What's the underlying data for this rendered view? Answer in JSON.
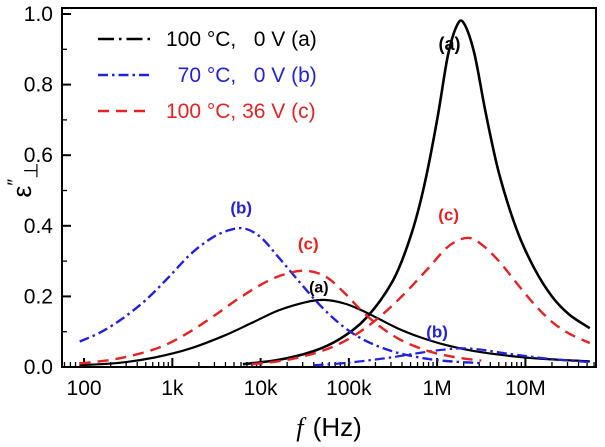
{
  "figure": {
    "background": "#ffffff"
  },
  "chart_data": {
    "type": "line",
    "title": "",
    "x_axis": {
      "label_italic": "f",
      "label_units": " (Hz)",
      "scale": "log",
      "range_log10": [
        1.75,
        7.8
      ],
      "ticks": [
        {
          "log10": 2,
          "label": "100"
        },
        {
          "log10": 3,
          "label": "1k"
        },
        {
          "log10": 4,
          "label": "10k"
        },
        {
          "log10": 5,
          "label": "100k"
        },
        {
          "log10": 6,
          "label": "1M"
        },
        {
          "log10": 7,
          "label": "10M"
        }
      ]
    },
    "y_axis": {
      "label_base": "ε",
      "label_sup": "″",
      "label_sub": "⊥",
      "range": [
        0,
        1.017
      ],
      "ticks": [
        {
          "value": 0.0,
          "label": "0.0"
        },
        {
          "value": 0.2,
          "label": "0.2"
        },
        {
          "value": 0.4,
          "label": "0.4"
        },
        {
          "value": 0.6,
          "label": "0.6"
        },
        {
          "value": 0.8,
          "label": "0.8"
        },
        {
          "value": 1.0,
          "label": "1.0"
        }
      ]
    },
    "colors": {
      "black": "#000000",
      "blue": "#2222dd",
      "red": "#e62222"
    },
    "legend": [
      {
        "label": "100 °C,   0 V (a)",
        "color": "#000000",
        "dash": "16 5 2.5 5"
      },
      {
        "label": "  70 °C,   0 V (b)",
        "color": "#2222dd",
        "dash": "10 4 2.5 4"
      },
      {
        "label": "100 °C, 36 V (c)",
        "color": "#e62222",
        "dash": "11 7"
      }
    ],
    "series": [
      {
        "id": "a-high-frequency-peak",
        "name": "100 °C, 0 V (a) high-f relaxation",
        "color": "#000000",
        "dash": null,
        "width": 2.6,
        "points": [
          [
            3.8,
            0.008
          ],
          [
            4.2,
            0.02
          ],
          [
            4.6,
            0.045
          ],
          [
            4.9,
            0.08
          ],
          [
            5.2,
            0.14
          ],
          [
            5.5,
            0.245
          ],
          [
            5.7,
            0.37
          ],
          [
            5.85,
            0.51
          ],
          [
            6.0,
            0.7
          ],
          [
            6.12,
            0.88
          ],
          [
            6.22,
            0.965
          ],
          [
            6.3,
            0.975
          ],
          [
            6.42,
            0.89
          ],
          [
            6.55,
            0.72
          ],
          [
            6.7,
            0.55
          ],
          [
            6.9,
            0.39
          ],
          [
            7.1,
            0.28
          ],
          [
            7.3,
            0.2
          ],
          [
            7.5,
            0.148
          ],
          [
            7.73,
            0.11
          ]
        ]
      },
      {
        "id": "a-low-frequency-peak",
        "name": "100 °C, 0 V (a) low-f relaxation",
        "color": "#000000",
        "dash": null,
        "width": 2.2,
        "points": [
          [
            1.95,
            0.005
          ],
          [
            2.4,
            0.012
          ],
          [
            2.8,
            0.027
          ],
          [
            3.2,
            0.052
          ],
          [
            3.6,
            0.09
          ],
          [
            3.9,
            0.125
          ],
          [
            4.2,
            0.16
          ],
          [
            4.5,
            0.183
          ],
          [
            4.72,
            0.19
          ],
          [
            4.95,
            0.18
          ],
          [
            5.15,
            0.16
          ],
          [
            5.35,
            0.135
          ],
          [
            5.55,
            0.11
          ],
          [
            5.8,
            0.085
          ],
          [
            6.1,
            0.062
          ],
          [
            6.4,
            0.046
          ],
          [
            6.8,
            0.032
          ],
          [
            7.2,
            0.023
          ],
          [
            7.73,
            0.016
          ]
        ]
      },
      {
        "id": "b-low-frequency-peak",
        "name": "70 °C, 0 V (b) low-f relaxation",
        "color": "#2222dd",
        "dash": "10 4 2.5 4",
        "width": 2.4,
        "points": [
          [
            1.95,
            0.072
          ],
          [
            2.2,
            0.1
          ],
          [
            2.45,
            0.14
          ],
          [
            2.7,
            0.19
          ],
          [
            2.95,
            0.252
          ],
          [
            3.2,
            0.318
          ],
          [
            3.45,
            0.366
          ],
          [
            3.65,
            0.388
          ],
          [
            3.82,
            0.392
          ],
          [
            4.0,
            0.368
          ],
          [
            4.2,
            0.312
          ],
          [
            4.45,
            0.238
          ],
          [
            4.7,
            0.168
          ],
          [
            4.95,
            0.112
          ],
          [
            5.2,
            0.073
          ],
          [
            5.5,
            0.044
          ],
          [
            5.8,
            0.027
          ],
          [
            6.1,
            0.017
          ],
          [
            6.5,
            0.011
          ]
        ]
      },
      {
        "id": "b-high-frequency-peak",
        "name": "70 °C, 0 V (b) high-f relaxation",
        "color": "#2222dd",
        "dash": "10 4 2.5 4",
        "width": 2.2,
        "points": [
          [
            4.6,
            0.005
          ],
          [
            4.9,
            0.01
          ],
          [
            5.2,
            0.018
          ],
          [
            5.5,
            0.028
          ],
          [
            5.8,
            0.04
          ],
          [
            6.1,
            0.05
          ],
          [
            6.3,
            0.053
          ],
          [
            6.5,
            0.049
          ],
          [
            6.8,
            0.038
          ],
          [
            7.1,
            0.028
          ],
          [
            7.4,
            0.02
          ],
          [
            7.73,
            0.014
          ]
        ]
      },
      {
        "id": "c-low-frequency-peak",
        "name": "100 °C, 36 V (c) low-f relaxation",
        "color": "#e62222",
        "dash": "11 7",
        "width": 2.4,
        "points": [
          [
            1.95,
            0.01
          ],
          [
            2.3,
            0.02
          ],
          [
            2.6,
            0.036
          ],
          [
            2.9,
            0.06
          ],
          [
            3.2,
            0.1
          ],
          [
            3.5,
            0.15
          ],
          [
            3.8,
            0.202
          ],
          [
            4.1,
            0.246
          ],
          [
            4.35,
            0.268
          ],
          [
            4.55,
            0.272
          ],
          [
            4.75,
            0.254
          ],
          [
            4.95,
            0.21
          ],
          [
            5.15,
            0.158
          ],
          [
            5.35,
            0.115
          ],
          [
            5.6,
            0.075
          ],
          [
            5.9,
            0.045
          ],
          [
            6.2,
            0.028
          ],
          [
            6.5,
            0.018
          ]
        ]
      },
      {
        "id": "c-high-frequency-peak",
        "name": "100 °C, 36 V (c) high-f relaxation",
        "color": "#e62222",
        "dash": "11 7",
        "width": 2.4,
        "points": [
          [
            3.9,
            0.008
          ],
          [
            4.3,
            0.02
          ],
          [
            4.7,
            0.046
          ],
          [
            5.0,
            0.08
          ],
          [
            5.3,
            0.132
          ],
          [
            5.6,
            0.2
          ],
          [
            5.9,
            0.28
          ],
          [
            6.1,
            0.336
          ],
          [
            6.25,
            0.36
          ],
          [
            6.38,
            0.365
          ],
          [
            6.52,
            0.344
          ],
          [
            6.7,
            0.3
          ],
          [
            6.9,
            0.238
          ],
          [
            7.1,
            0.178
          ],
          [
            7.3,
            0.128
          ],
          [
            7.5,
            0.094
          ],
          [
            7.73,
            0.068
          ]
        ]
      }
    ],
    "annotations": [
      {
        "text": "(a)",
        "x_log10": 6.14,
        "y": 0.915,
        "color": "#000000",
        "font_size": 18
      },
      {
        "text": "(a)",
        "x_log10": 4.66,
        "y": 0.228,
        "color": "#000000",
        "font_size": 16
      },
      {
        "text": "(b)",
        "x_log10": 3.78,
        "y": 0.452,
        "color": "#2222dd",
        "font_size": 17
      },
      {
        "text": "(b)",
        "x_log10": 6.0,
        "y": 0.1,
        "color": "#2222dd",
        "font_size": 17
      },
      {
        "text": "(c)",
        "x_log10": 4.54,
        "y": 0.35,
        "color": "#e62222",
        "font_size": 17
      },
      {
        "text": "(c)",
        "x_log10": 6.13,
        "y": 0.432,
        "color": "#e62222",
        "font_size": 17
      }
    ]
  }
}
